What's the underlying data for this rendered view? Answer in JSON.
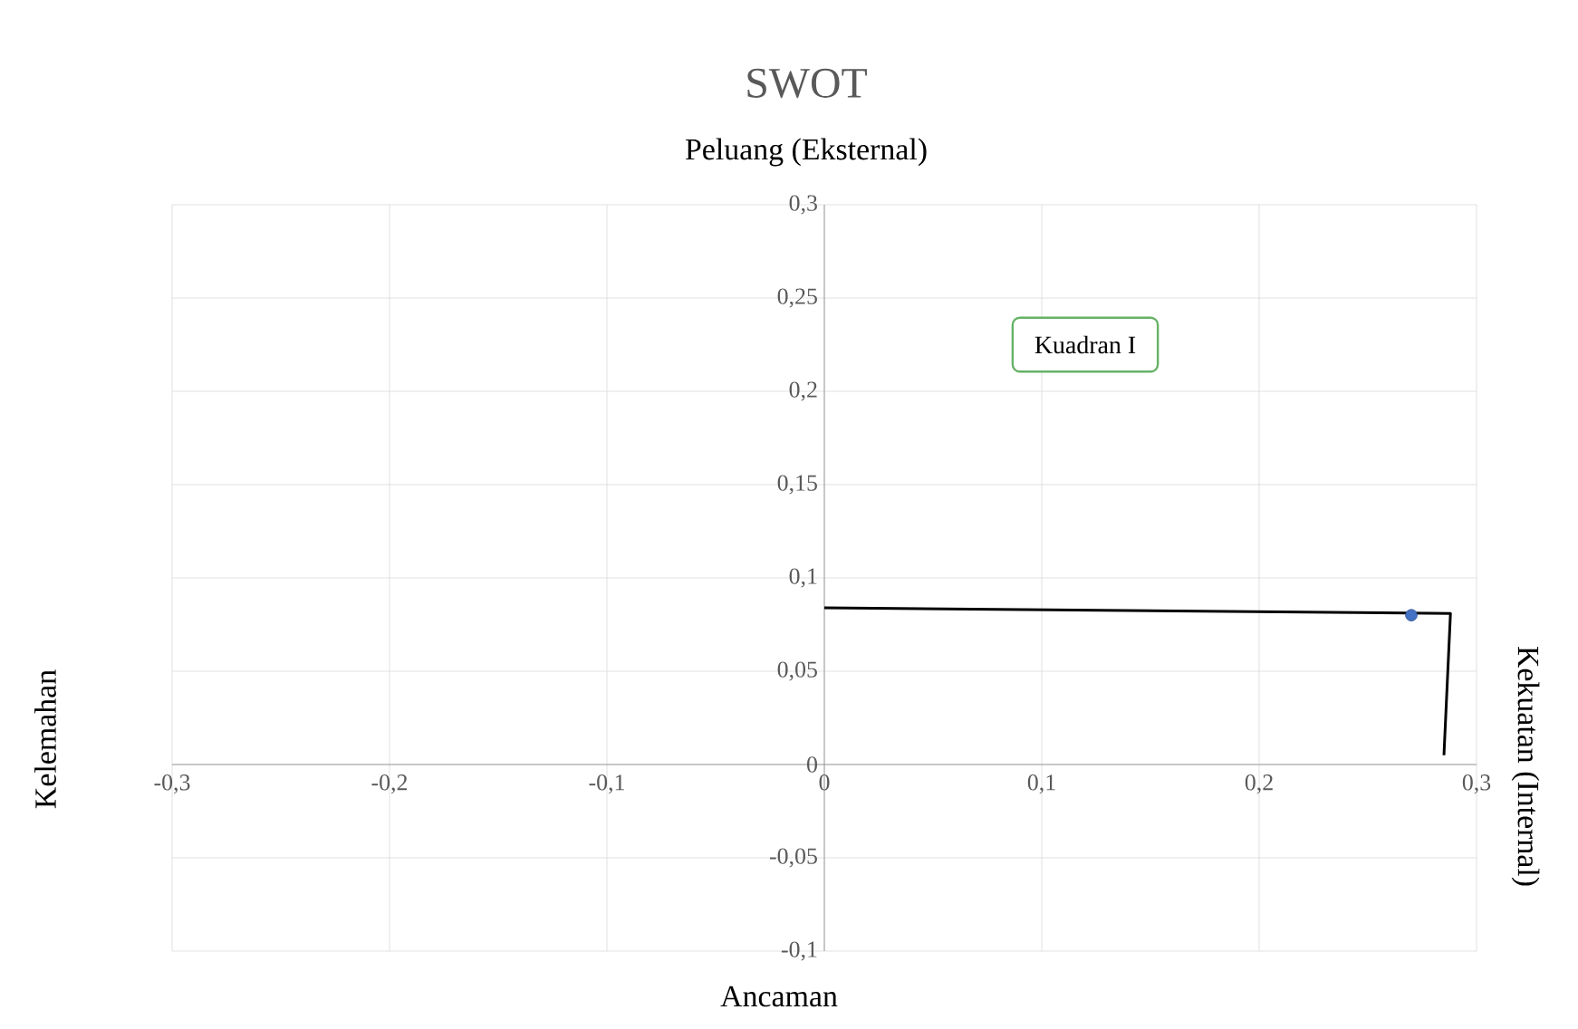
{
  "chart_data": {
    "type": "scatter",
    "title": "SWOT",
    "subtitle": "Peluang (Eksternal)",
    "xlabel": "Ancaman",
    "ylabel": "Kelemahan",
    "y2label": "Kekuatan (Internal)",
    "annotations": [
      "Kuadran I"
    ],
    "series": [
      {
        "color": "#4472c4",
        "marker": "circle",
        "x": [
          0.27
        ],
        "values": [
          0.08
        ]
      },
      {
        "type": "line",
        "color": "#000000",
        "marker": "none",
        "x": [
          0,
          0.288,
          0.285
        ],
        "values": [
          0.084,
          0.081,
          0.005
        ]
      }
    ],
    "xlim": [
      -0.3,
      0.3
    ],
    "ylim": [
      -0.1,
      0.3
    ],
    "xticks": [
      {
        "value": -0.3,
        "label": "-0,3"
      },
      {
        "value": -0.2,
        "label": "-0,2"
      },
      {
        "value": -0.1,
        "label": "-0,1"
      },
      0,
      {
        "value": 0.1,
        "label": "0,1"
      },
      {
        "value": 0.2,
        "label": "0,2"
      },
      {
        "value": 0.3,
        "label": "0,3"
      }
    ],
    "yticks": [
      {
        "value": -0.1,
        "label": "-0,1"
      },
      {
        "value": -0.05,
        "label": "-0,05"
      },
      0,
      {
        "value": 0.05,
        "label": "0,05"
      },
      {
        "value": 0.1,
        "label": "0,1"
      },
      {
        "value": 0.15,
        "label": "0,15"
      },
      {
        "value": 0.2,
        "label": "0,2"
      },
      {
        "value": 0.25,
        "label": "0,25"
      },
      {
        "value": 0.3,
        "label": "0,3"
      }
    ],
    "grid": true,
    "line_style": "solid"
  }
}
